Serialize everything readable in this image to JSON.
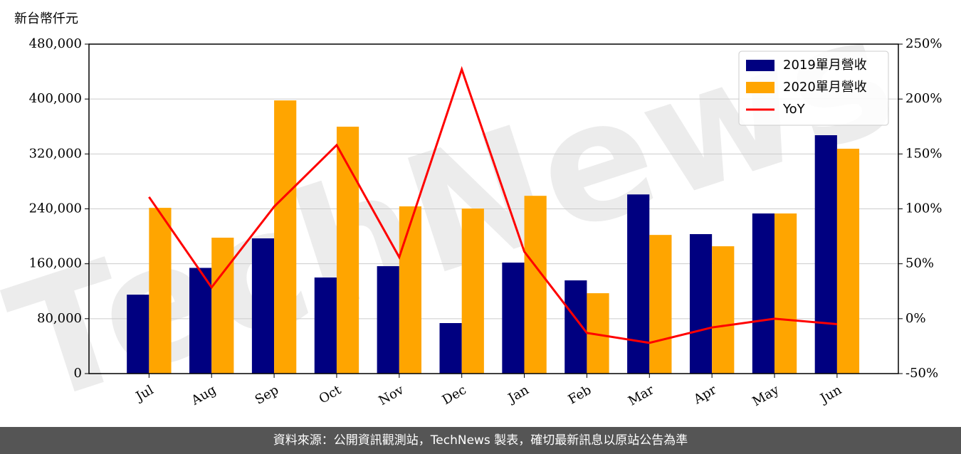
{
  "chart_data": {
    "type": "bar_line",
    "unit_label": "新台幣仟元",
    "watermark": "TechNews",
    "source": "資料來源：公開資訊觀測站，TechNews 製表，確切最新訊息以原站公告為準",
    "categories": [
      "Jul",
      "Aug",
      "Sep",
      "Oct",
      "Nov",
      "Dec",
      "Jan",
      "Feb",
      "Mar",
      "Apr",
      "May",
      "Jun"
    ],
    "series": [
      {
        "name": "2019單月營收",
        "color": "#000080",
        "type": "bar",
        "values": [
          115000,
          154000,
          197000,
          140000,
          156500,
          73600,
          161700,
          135800,
          261000,
          203200,
          233300,
          347300
        ]
      },
      {
        "name": "2020單月營收",
        "color": "#ffa500",
        "type": "bar",
        "values": [
          241500,
          198000,
          398000,
          359700,
          243600,
          240500,
          259000,
          117100,
          202000,
          185500,
          233300,
          327600
        ]
      },
      {
        "name": "YoY",
        "color": "#ff0000",
        "type": "line",
        "axis": "y2",
        "values": [
          110.8,
          28.5,
          102,
          158,
          56,
          227,
          61,
          -13,
          -22,
          -8,
          0,
          -5
        ]
      }
    ],
    "ylim": [
      0,
      480000
    ],
    "yticks": [
      0,
      {
        "value": 80000,
        "label": "80,000"
      },
      {
        "value": 160000,
        "label": "160,000"
      },
      {
        "value": 240000,
        "label": "240,000"
      },
      {
        "value": 320000,
        "label": "320,000"
      },
      {
        "value": 400000,
        "label": "400,000"
      },
      {
        "value": 480000,
        "label": "480,000"
      }
    ],
    "y2lim": [
      -50,
      250
    ],
    "y2ticks": [
      {
        "value": -50,
        "label": "-50%"
      },
      {
        "value": 0,
        "label": "0%"
      },
      {
        "value": 50,
        "label": "50%"
      },
      {
        "value": 100,
        "label": "100%"
      },
      {
        "value": 150,
        "label": "150%"
      },
      {
        "value": 200,
        "label": "200%"
      },
      {
        "value": 250,
        "label": "250%"
      }
    ],
    "grid": true,
    "legend": "upper right"
  }
}
